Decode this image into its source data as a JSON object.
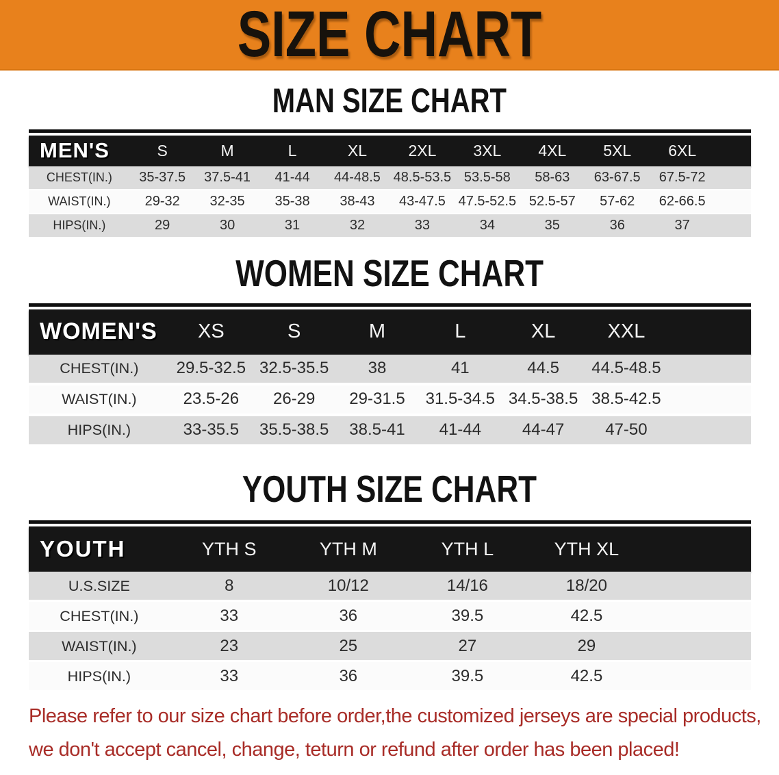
{
  "banner": {
    "title": "SIZE CHART"
  },
  "sections": [
    {
      "key": "mens",
      "heading": "MAN SIZE CHART",
      "table": {
        "corner_label": "MEN'S",
        "sizes": [
          "S",
          "M",
          "L",
          "XL",
          "2XL",
          "3XL",
          "4XL",
          "5XL",
          "6XL"
        ],
        "rows": [
          {
            "label": "CHEST(IN.)",
            "values": [
              "35-37.5",
              "37.5-41",
              "41-44",
              "44-48.5",
              "48.5-53.5",
              "53.5-58",
              "58-63",
              "63-67.5",
              "67.5-72"
            ]
          },
          {
            "label": "WAIST(IN.)",
            "values": [
              "29-32",
              "32-35",
              "35-38",
              "38-43",
              "43-47.5",
              "47.5-52.5",
              "52.5-57",
              "57-62",
              "62-66.5"
            ]
          },
          {
            "label": "HIPS(IN.)",
            "values": [
              "29",
              "30",
              "31",
              "32",
              "33",
              "34",
              "35",
              "36",
              "37"
            ]
          }
        ]
      }
    },
    {
      "key": "womens",
      "heading": "WOMEN SIZE CHART",
      "table": {
        "corner_label": "WOMEN'S",
        "sizes": [
          "XS",
          "S",
          "M",
          "L",
          "XL",
          "XXL"
        ],
        "rows": [
          {
            "label": "CHEST(IN.)",
            "values": [
              "29.5-32.5",
              "32.5-35.5",
              "38",
              "41",
              "44.5",
              "44.5-48.5"
            ]
          },
          {
            "label": "WAIST(IN.)",
            "values": [
              "23.5-26",
              "26-29",
              "29-31.5",
              "31.5-34.5",
              "34.5-38.5",
              "38.5-42.5"
            ]
          },
          {
            "label": "HIPS(IN.)",
            "values": [
              "33-35.5",
              "35.5-38.5",
              "38.5-41",
              "41-44",
              "44-47",
              "47-50"
            ]
          }
        ]
      }
    },
    {
      "key": "youth",
      "heading": "YOUTH SIZE CHART",
      "table": {
        "corner_label": "YOUTH",
        "sizes": [
          "YTH S",
          "YTH M",
          "YTH L",
          "YTH XL"
        ],
        "rows": [
          {
            "label": "U.S.SIZE",
            "values": [
              "8",
              "10/12",
              "14/16",
              "18/20"
            ]
          },
          {
            "label": "CHEST(IN.)",
            "values": [
              "33",
              "36",
              "39.5",
              "42.5"
            ]
          },
          {
            "label": "WAIST(IN.)",
            "values": [
              "23",
              "25",
              "27",
              "29"
            ]
          },
          {
            "label": "HIPS(IN.)",
            "values": [
              "33",
              "36",
              "39.5",
              "42.5"
            ]
          }
        ]
      }
    }
  ],
  "footer": {
    "line1": "Please refer to our size chart before order,the customized jerseys are special products,",
    "line2": "we don't accept cancel, change, teturn or refund after order has been placed!"
  },
  "colors": {
    "banner_bg": "#e8811c",
    "table_header_bg": "#161616",
    "row_gray": "#dcdcdc",
    "footer_red": "#a82c27"
  }
}
